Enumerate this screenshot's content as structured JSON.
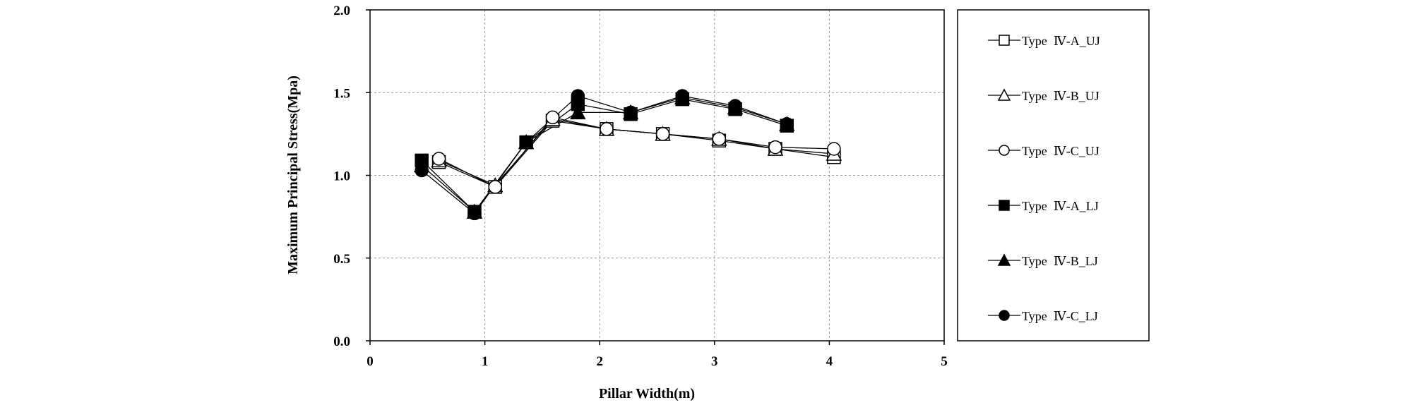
{
  "chart_data": {
    "type": "line",
    "title": "",
    "xlabel": "Pillar Width(m)",
    "ylabel": "Maximum Principal Stress(Mpa)",
    "xlim": [
      0,
      5
    ],
    "ylim": [
      0.0,
      2.0
    ],
    "x_ticks": [
      "0",
      "1",
      "2",
      "3",
      "4",
      "5"
    ],
    "y_ticks": [
      "0.0",
      "0.5",
      "1.0",
      "1.5",
      "2.0"
    ],
    "grid": true,
    "legend_position": "right",
    "series": [
      {
        "name": "Type  Ⅳ-A_UJ",
        "marker": "square",
        "filled": false,
        "x": [
          0.6,
          1.09,
          1.59,
          2.06,
          2.55,
          3.04,
          3.53,
          4.04
        ],
        "y": [
          1.08,
          0.93,
          1.33,
          1.28,
          1.25,
          1.21,
          1.16,
          1.11
        ]
      },
      {
        "name": "Type  Ⅳ-B_UJ",
        "marker": "triangle",
        "filled": false,
        "x": [
          0.6,
          1.09,
          1.59,
          2.06,
          2.55,
          3.04,
          3.53,
          4.04
        ],
        "y": [
          1.09,
          0.94,
          1.34,
          1.28,
          1.25,
          1.22,
          1.16,
          1.13
        ]
      },
      {
        "name": "Type  Ⅳ-C_UJ",
        "marker": "circle",
        "filled": false,
        "x": [
          0.6,
          1.09,
          1.59,
          2.06,
          2.55,
          3.04,
          3.53,
          4.04
        ],
        "y": [
          1.1,
          0.93,
          1.35,
          1.28,
          1.25,
          1.22,
          1.17,
          1.16
        ]
      },
      {
        "name": "Type  Ⅳ-A_LJ",
        "marker": "square",
        "filled": true,
        "x": [
          0.45,
          0.91,
          1.36,
          1.81,
          2.27,
          2.72,
          3.18,
          3.63
        ],
        "y": [
          1.09,
          0.78,
          1.2,
          1.43,
          1.37,
          1.46,
          1.4,
          1.3
        ]
      },
      {
        "name": "Type  Ⅳ-B_LJ",
        "marker": "triangle",
        "filled": true,
        "x": [
          0.45,
          0.91,
          1.36,
          1.81,
          2.27,
          2.72,
          3.18,
          3.63
        ],
        "y": [
          1.06,
          0.78,
          1.2,
          1.38,
          1.38,
          1.47,
          1.41,
          1.31
        ]
      },
      {
        "name": "Type  Ⅳ-C_LJ",
        "marker": "circle",
        "filled": true,
        "x": [
          0.45,
          0.91,
          1.36,
          1.81,
          2.27,
          2.72,
          3.18,
          3.63
        ],
        "y": [
          1.03,
          0.77,
          1.2,
          1.48,
          1.38,
          1.48,
          1.42,
          1.31
        ]
      }
    ]
  }
}
